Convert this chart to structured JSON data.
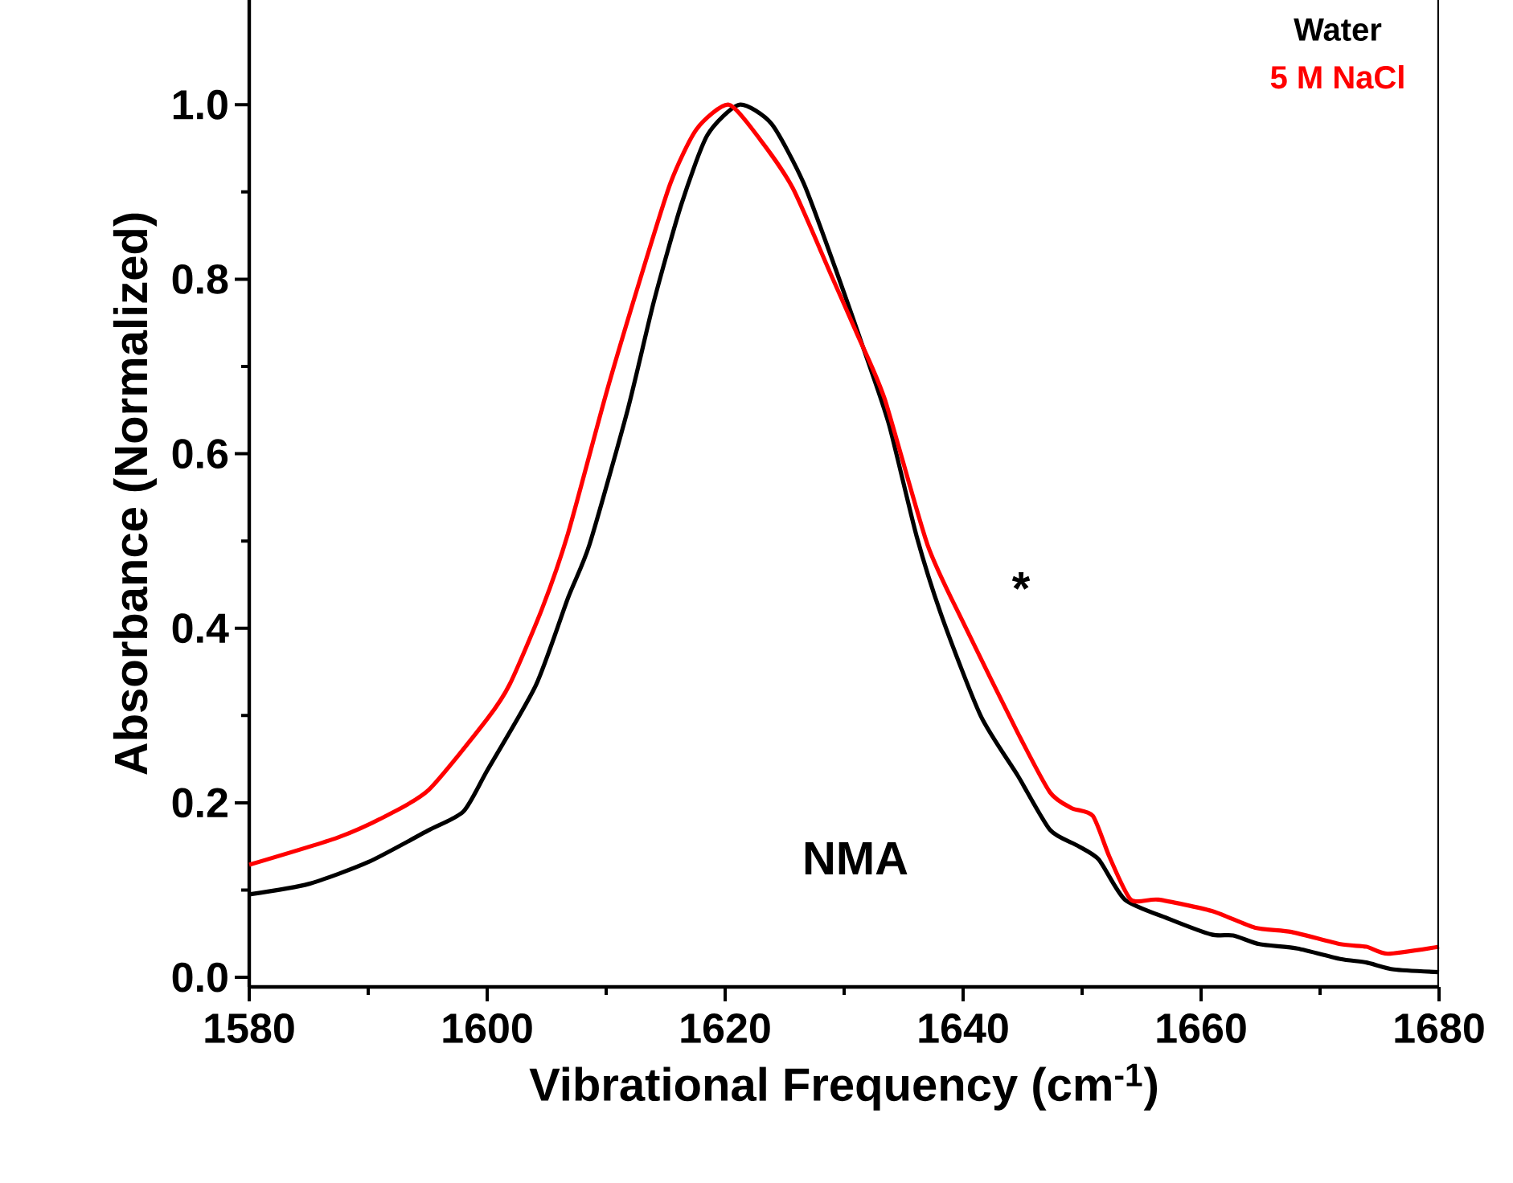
{
  "chart_data": {
    "type": "line",
    "xlabel": "Vibrational Frequency (cm$^{-1}$)",
    "ylabel": "Absorbance (Normalized)",
    "xlim": [
      1580,
      1680
    ],
    "ylim": [
      -0.011,
      1.12
    ],
    "xticks": [
      1580,
      1600,
      1620,
      1640,
      1660,
      1680
    ],
    "yticks": [
      {
        "value": 0,
        "label": "0.0"
      },
      {
        "value": 0.2,
        "label": "0.2"
      },
      {
        "value": 0.4,
        "label": "0.4"
      },
      {
        "value": 0.6,
        "label": "0.6"
      },
      {
        "value": 0.8,
        "label": "0.8"
      },
      {
        "value": 1,
        "label": "1.0"
      }
    ],
    "grid": false,
    "marker": "none",
    "line_style": "solid",
    "annotations": [
      "NMA",
      "*"
    ],
    "series": [
      {
        "name": "Water",
        "color": "#000000",
        "x": [
          1580,
          1585,
          1590,
          1595,
          1598,
          1600,
          1604.1,
          1606.8,
          1608.6,
          1611.8,
          1614.0,
          1616.3,
          1618.5,
          1621.2,
          1623.9,
          1626.6,
          1629.3,
          1632.0,
          1633.8,
          1636.1,
          1638.3,
          1641.5,
          1644.6,
          1647.3,
          1649.6,
          1651.4,
          1653.6,
          1657.3,
          1660.9,
          1662.7,
          1664.9,
          1668.1,
          1671.7,
          1673.9,
          1676.2,
          1680
        ],
        "values": [
          0.095,
          0.107,
          0.132,
          0.168,
          0.19,
          0.237,
          0.335,
          0.435,
          0.496,
          0.65,
          0.774,
          0.885,
          0.965,
          1.0,
          0.978,
          0.91,
          0.811,
          0.706,
          0.632,
          0.505,
          0.41,
          0.299,
          0.231,
          0.169,
          0.151,
          0.135,
          0.089,
          0.067,
          0.049,
          0.048,
          0.038,
          0.033,
          0.021,
          0.017,
          0.009,
          0.006
        ]
      },
      {
        "name": "5 M NaCl",
        "color": "#ff0000",
        "x": [
          1580,
          1587.4,
          1591.5,
          1595.1,
          1600.0,
          1601.9,
          1604.6,
          1606.8,
          1610.0,
          1612.7,
          1615.4,
          1617.6,
          1620.3,
          1623.0,
          1625.7,
          1628.9,
          1631.1,
          1633.4,
          1637.0,
          1640.1,
          1644.6,
          1647.3,
          1649.1,
          1650.9,
          1652.3,
          1654.1,
          1656.4,
          1660.9,
          1664.5,
          1667.6,
          1671.7,
          1673.9,
          1675.7,
          1680
        ],
        "values": [
          0.129,
          0.16,
          0.185,
          0.215,
          0.296,
          0.336,
          0.422,
          0.509,
          0.669,
          0.793,
          0.91,
          0.972,
          1.0,
          0.959,
          0.904,
          0.805,
          0.737,
          0.663,
          0.496,
          0.404,
          0.28,
          0.212,
          0.194,
          0.185,
          0.138,
          0.089,
          0.089,
          0.076,
          0.057,
          0.052,
          0.038,
          0.035,
          0.027,
          0.035
        ]
      }
    ]
  }
}
